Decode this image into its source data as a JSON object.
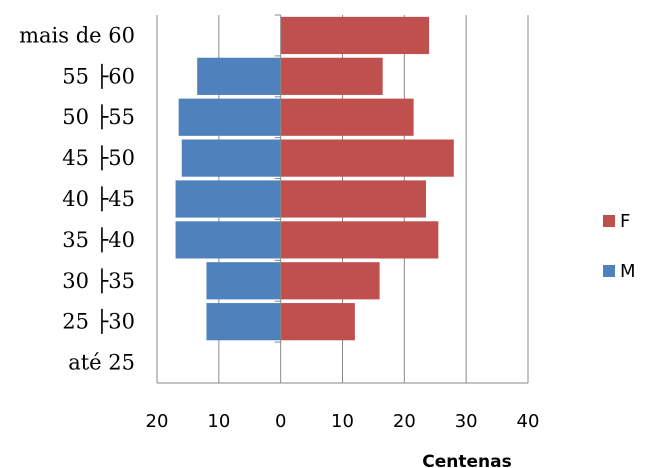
{
  "chart_data": {
    "type": "bar",
    "orientation": "horizontal",
    "layout": "population-pyramid",
    "categories": [
      "mais de 60",
      "55 ├60",
      "50 ├55",
      "45 ├50",
      "40 ├45",
      "35 ├40",
      "30 ├35",
      "25 ├30",
      "até 25"
    ],
    "series": [
      {
        "name": "F",
        "color": "#c0504d",
        "side": "right",
        "values": [
          24,
          16.5,
          21.5,
          28,
          23.5,
          25.5,
          16,
          12,
          0
        ]
      },
      {
        "name": "M",
        "color": "#4f81bd",
        "side": "left",
        "values": [
          0,
          13.5,
          16.5,
          16,
          17,
          17,
          12,
          12,
          0
        ]
      }
    ],
    "xlabel": "Centenas",
    "xlim": [
      -20,
      40
    ],
    "x_ticks": [
      {
        "value": -20,
        "label": "20"
      },
      {
        "value": -10,
        "label": "10"
      },
      {
        "value": 0,
        "label": "0"
      },
      {
        "value": 10,
        "label": "10"
      },
      {
        "value": 20,
        "label": "20"
      },
      {
        "value": 30,
        "label": "30"
      },
      {
        "value": 40,
        "label": "40"
      }
    ],
    "grid": "vertical",
    "legend_position": "right",
    "legend_order": [
      "F",
      "M"
    ],
    "axis_color": "#898989"
  }
}
